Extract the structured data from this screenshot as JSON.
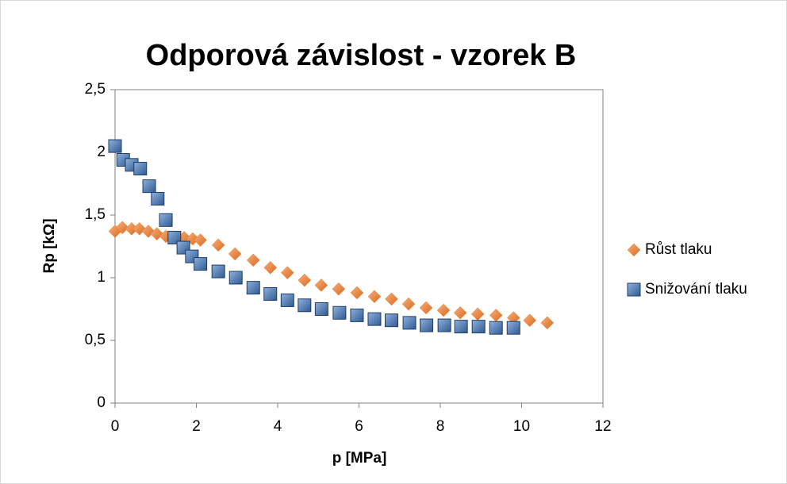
{
  "chart_data": {
    "type": "scatter",
    "title": "Odporová závislost - vzorek B",
    "x_label": "p [MPa]",
    "y_label": "Rp [kΩ]",
    "xlim": [
      0,
      12
    ],
    "xticks": [
      0,
      2,
      4,
      6,
      8,
      10,
      12
    ],
    "ylim": [
      0,
      2.5
    ],
    "yticks": [
      0,
      {
        "value": 0.5,
        "label": "0,5"
      },
      1,
      {
        "value": 1.5,
        "label": "1,5"
      },
      2,
      {
        "value": 2.5,
        "label": "2,5"
      }
    ],
    "grid": false,
    "legend": "right",
    "series": [
      {
        "name": "Růst tlaku",
        "color": "#ED7D31",
        "marker": "diamond",
        "x": [
          0,
          0.18,
          0.41,
          0.6,
          0.82,
          1.03,
          1.25,
          1.48,
          1.7,
          1.91,
          2.1,
          2.54,
          2.95,
          3.4,
          3.82,
          4.24,
          4.66,
          5.07,
          5.5,
          5.95,
          6.38,
          6.8,
          7.22,
          7.65,
          8.08,
          8.49,
          8.92,
          9.37,
          9.8,
          10.2,
          10.63
        ],
        "values": [
          1.37,
          1.4,
          1.39,
          1.39,
          1.37,
          1.35,
          1.33,
          1.32,
          1.32,
          1.31,
          1.3,
          1.26,
          1.19,
          1.14,
          1.08,
          1.04,
          0.98,
          0.94,
          0.91,
          0.88,
          0.85,
          0.83,
          0.79,
          0.76,
          0.74,
          0.72,
          0.71,
          0.7,
          0.68,
          0.66,
          0.64
        ]
      },
      {
        "name": "Snižování tlaku",
        "color": "#4F81BD",
        "marker": "square",
        "x": [
          0,
          0.2,
          0.41,
          0.62,
          0.84,
          1.05,
          1.25,
          1.46,
          1.68,
          1.89,
          2.1,
          2.54,
          2.97,
          3.4,
          3.82,
          4.24,
          4.66,
          5.08,
          5.52,
          5.95,
          6.38,
          6.8,
          7.24,
          7.66,
          8.1,
          8.51,
          8.94,
          9.37,
          9.8
        ],
        "values": [
          2.05,
          1.94,
          1.9,
          1.87,
          1.73,
          1.63,
          1.46,
          1.32,
          1.24,
          1.17,
          1.11,
          1.05,
          1.0,
          0.92,
          0.87,
          0.82,
          0.78,
          0.75,
          0.72,
          0.7,
          0.67,
          0.66,
          0.64,
          0.62,
          0.62,
          0.61,
          0.61,
          0.6,
          0.6
        ]
      }
    ]
  }
}
